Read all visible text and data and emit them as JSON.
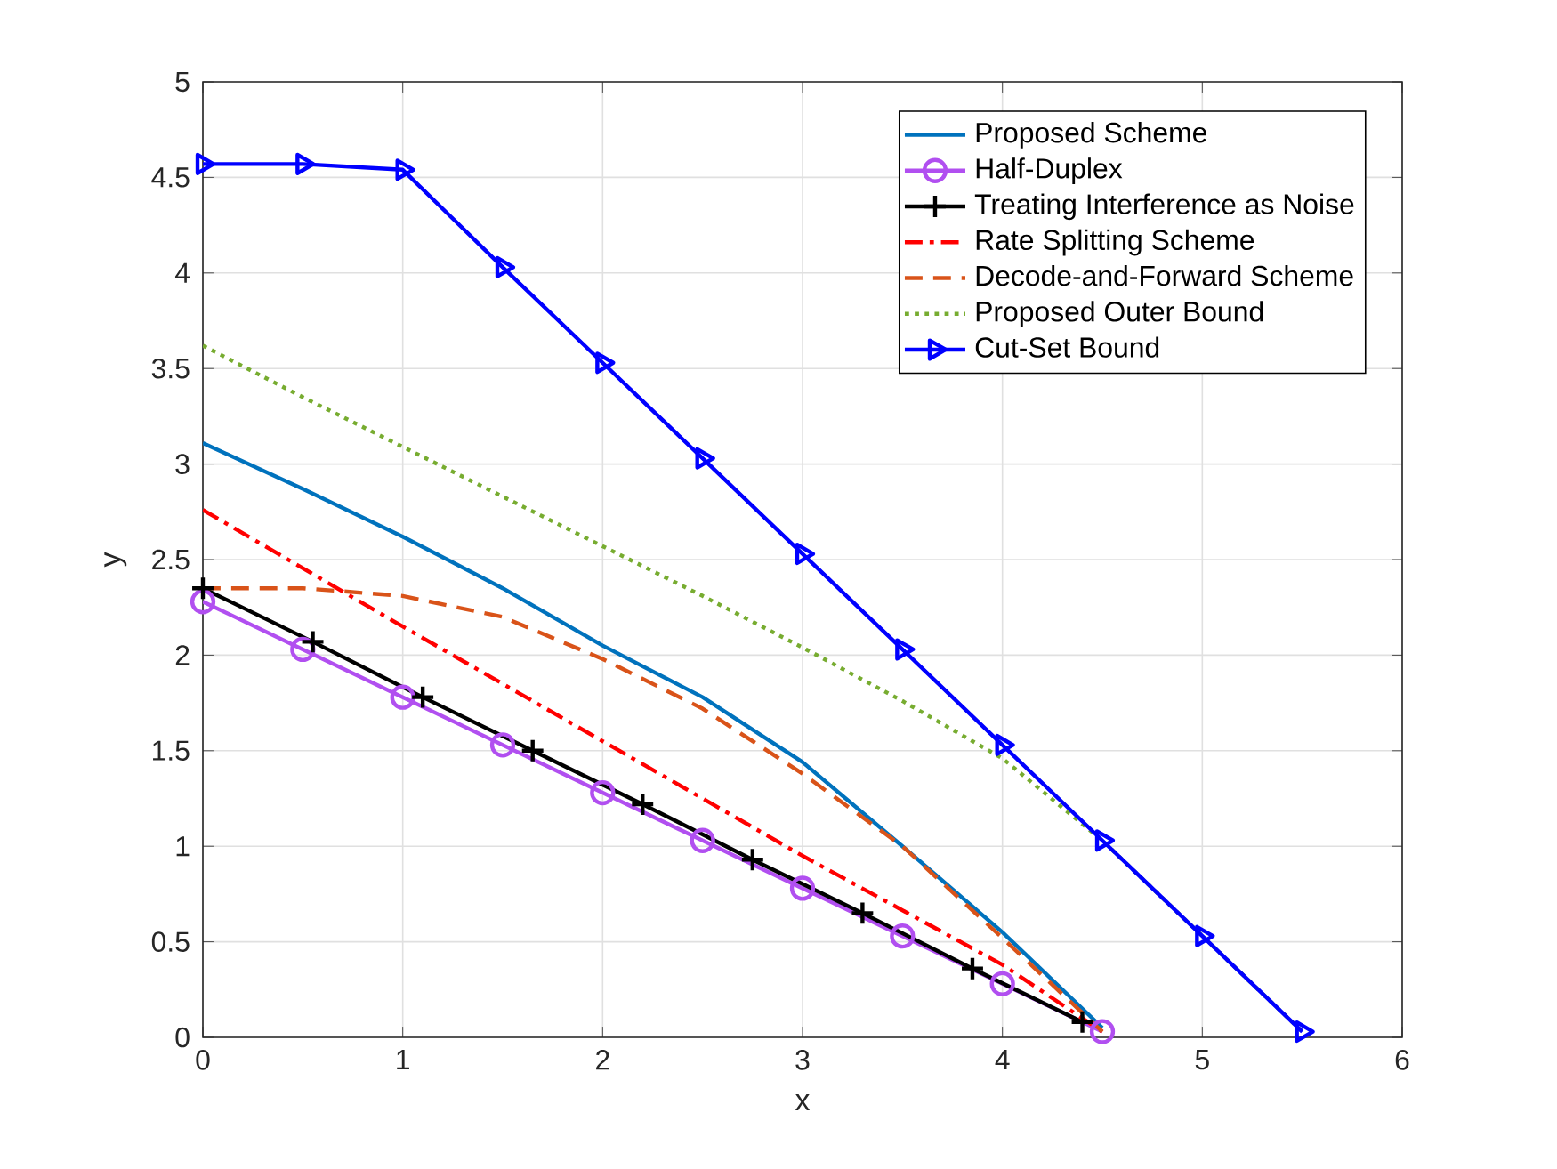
{
  "chart_data": {
    "type": "line",
    "xlabel": "x",
    "ylabel": "y",
    "xlim": [
      0,
      6
    ],
    "ylim": [
      0,
      5
    ],
    "xticks": [
      0,
      1,
      2,
      3,
      4,
      5,
      6
    ],
    "yticks": [
      0,
      0.5,
      1,
      1.5,
      2,
      2.5,
      3,
      3.5,
      4,
      4.5,
      5
    ],
    "grid": true,
    "legend": "top right",
    "series": [
      {
        "name": "Proposed Scheme",
        "color": "#0072bd",
        "line_style": "solid",
        "marker": "none",
        "x": [
          0,
          0.5,
          1,
          1.5,
          2,
          2.5,
          3,
          3.5,
          4,
          4.5
        ],
        "values": [
          3.11,
          2.87,
          2.62,
          2.35,
          2.05,
          1.78,
          1.44,
          1.0,
          0.55,
          0.05
        ]
      },
      {
        "name": "Half-Duplex",
        "color": "#b14ff0",
        "line_style": "solid",
        "marker": "circle",
        "x": [
          0,
          0.5,
          1,
          1.5,
          2,
          2.5,
          3,
          3.5,
          4,
          4.5
        ],
        "values": [
          2.28,
          2.03,
          1.78,
          1.53,
          1.28,
          1.03,
          0.78,
          0.53,
          0.28,
          0.03
        ]
      },
      {
        "name": "Treating Interference as Noise",
        "color": "#000000",
        "line_style": "solid",
        "marker": "cross",
        "x": [
          0,
          0.55,
          1.1,
          1.65,
          2.2,
          2.75,
          3.3,
          3.85,
          4.4
        ],
        "values": [
          2.35,
          2.07,
          1.78,
          1.5,
          1.22,
          0.93,
          0.65,
          0.36,
          0.08
        ]
      },
      {
        "name": "Rate Splitting Scheme",
        "color": "#ff0000",
        "line_style": "dashdot",
        "marker": "none",
        "x": [
          0,
          1,
          2,
          3,
          4,
          4.5
        ],
        "values": [
          2.76,
          2.15,
          1.55,
          0.95,
          0.38,
          0.03
        ]
      },
      {
        "name": "Decode-and-Forward Scheme",
        "color": "#d95319",
        "line_style": "dashed",
        "marker": "none",
        "x": [
          0,
          0.5,
          1,
          1.5,
          2,
          2.5,
          3,
          3.5,
          4,
          4.5
        ],
        "values": [
          2.35,
          2.35,
          2.31,
          2.2,
          1.98,
          1.72,
          1.38,
          1.0,
          0.52,
          0.03
        ]
      },
      {
        "name": "Proposed Outer Bound",
        "color": "#77ac30",
        "line_style": "dotted",
        "marker": "none",
        "x": [
          0,
          0.5,
          1,
          1.5,
          2,
          2.5,
          3,
          3.5,
          4,
          4.5,
          5,
          5.5
        ],
        "values": [
          3.62,
          3.35,
          3.09,
          2.83,
          2.57,
          2.31,
          2.04,
          1.76,
          1.46,
          1.03,
          0.53,
          0.03
        ]
      },
      {
        "name": "Cut-Set Bound",
        "color": "#0000ff",
        "line_style": "solid",
        "marker": "triangle",
        "x": [
          0,
          0.5,
          1,
          1.5,
          2,
          2.5,
          3,
          3.5,
          4,
          4.5,
          5,
          5.5
        ],
        "values": [
          4.57,
          4.57,
          4.54,
          4.03,
          3.53,
          3.03,
          2.53,
          2.03,
          1.53,
          1.03,
          0.53,
          0.03
        ]
      }
    ]
  }
}
